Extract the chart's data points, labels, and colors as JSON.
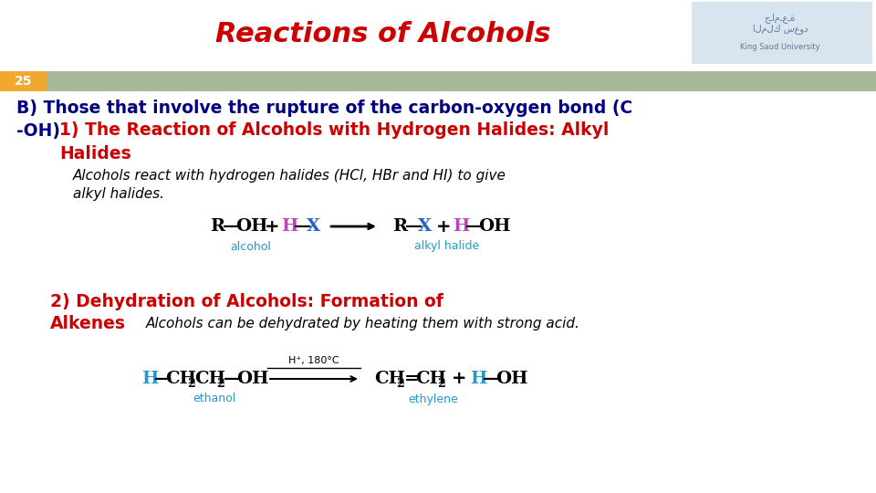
{
  "title": "Reactions of Alcohols",
  "title_color": "#cc0000",
  "title_fontsize": 22,
  "slide_number": "25",
  "slide_num_bg": "#f0a830",
  "header_bar_color": "#a8b89a",
  "bg_color": "#ffffff",
  "section_b_line1": "B) Those that involve the rupture of the carbon-oxygen bond (C",
  "section_b_line2": "-OH)",
  "section_b_color": "#000080",
  "section_1_title_line1": "1) The Reaction of Alcohols with Hydrogen Halides: Alkyl",
  "section_1_title_line2": "Halides",
  "section_1_color": "#cc0000",
  "section_1_desc_line1": "Alcohols react with hydrogen halides (HCl, HBr and HI) to give",
  "section_1_desc_line2": "alkyl halides.",
  "desc_color": "#000000",
  "rxn1_label_alcohol": "alcohol",
  "rxn1_label_alkylhalide": "alkyl halide",
  "rxn_label_color": "#2299cc",
  "section_2_title_line1": "2) Dehydration of Alcohols: Formation of",
  "section_2_title_line2": "Alkenes",
  "section_2_color": "#cc0000",
  "section_2_desc": "Alcohols can be dehydrated by heating them with strong acid.",
  "rxn2_label_ethanol": "ethanol",
  "rxn2_label_ethylene": "ethylene",
  "logo_bg": "#d8e4ee"
}
